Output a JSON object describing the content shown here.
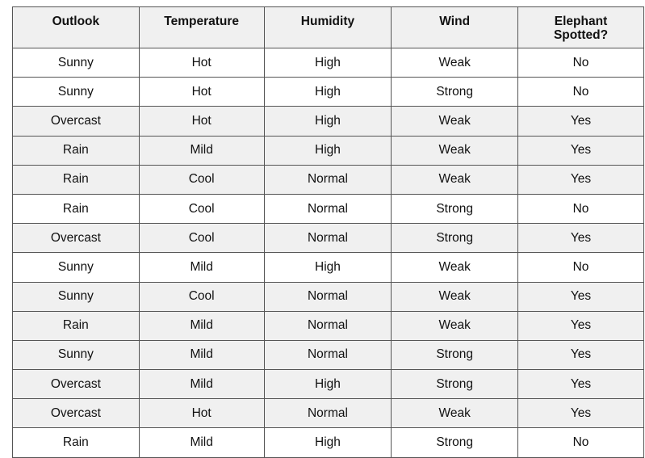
{
  "table": {
    "headers": [
      "Outlook",
      "Temperature",
      "Humidity",
      "Wind",
      "Elephant Spotted?"
    ],
    "row_highlight_color": "#f0f0f0",
    "rows": [
      [
        "Sunny",
        "Hot",
        "High",
        "Weak",
        "No"
      ],
      [
        "Sunny",
        "Hot",
        "High",
        "Strong",
        "No"
      ],
      [
        "Overcast",
        "Hot",
        "High",
        "Weak",
        "Yes"
      ],
      [
        "Rain",
        "Mild",
        "High",
        "Weak",
        "Yes"
      ],
      [
        "Rain",
        "Cool",
        "Normal",
        "Weak",
        "Yes"
      ],
      [
        "Rain",
        "Cool",
        "Normal",
        "Strong",
        "No"
      ],
      [
        "Overcast",
        "Cool",
        "Normal",
        "Strong",
        "Yes"
      ],
      [
        "Sunny",
        "Mild",
        "High",
        "Weak",
        "No"
      ],
      [
        "Sunny",
        "Cool",
        "Normal",
        "Weak",
        "Yes"
      ],
      [
        "Rain",
        "Mild",
        "Normal",
        "Weak",
        "Yes"
      ],
      [
        "Sunny",
        "Mild",
        "Normal",
        "Strong",
        "Yes"
      ],
      [
        "Overcast",
        "Mild",
        "High",
        "Strong",
        "Yes"
      ],
      [
        "Overcast",
        "Hot",
        "Normal",
        "Weak",
        "Yes"
      ],
      [
        "Rain",
        "Mild",
        "High",
        "Strong",
        "No"
      ]
    ]
  }
}
